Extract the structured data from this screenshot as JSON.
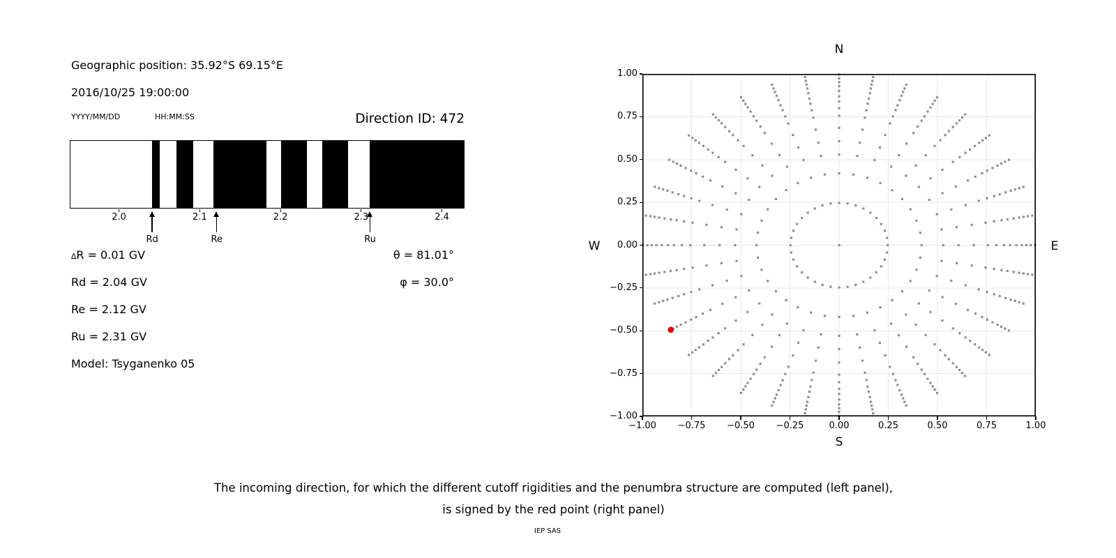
{
  "header": {
    "geo_position": "Geographic position: 35.92°S 69.15°E",
    "datetime": "2016/10/25 19:00:00",
    "date_format_label": "YYYY/MM/DD",
    "time_format_label": "HH:MM:SS"
  },
  "info": {
    "left_lines": [
      "∆R = 0.01 GV",
      "Rd = 2.04 GV",
      "Re = 2.12 GV",
      "Ru = 2.31 GV",
      "Model: Tsyganenko 05"
    ],
    "right_lines": [
      "θ = 81.01°",
      "φ = 30.0°"
    ]
  },
  "caption": {
    "line1": "The incoming direction, for which the different cutoff rigidities and the penumbra structure are computed (left panel),",
    "line2": "is signed by the red point (right panel)",
    "credit": "IEP SAS"
  },
  "colors": {
    "forbidden": "#000000",
    "allowed": "#ffffff",
    "dot_gray": "#8f8f8f",
    "dot_red": "#e00000",
    "grid": "#e8e8e8",
    "axis": "#000000",
    "text": "#000000"
  },
  "chart_data": [
    {
      "type": "bar",
      "name": "penumbra-structure",
      "title": "Direction ID: 472",
      "description": "Penumbra: black bands = forbidden rigidities, white = allowed trajectories",
      "xlabel_unit": "GV",
      "xlim": [
        1.939,
        2.428
      ],
      "xticks": [
        {
          "v": 2.0,
          "label": "2.0"
        },
        {
          "v": 2.1,
          "label": "2.1"
        },
        {
          "v": 2.2,
          "label": "2.2"
        },
        {
          "v": 2.3,
          "label": "2.3"
        },
        {
          "v": 2.4,
          "label": "2.4"
        }
      ],
      "forbidden_bands_GV": [
        [
          2.04,
          2.05
        ],
        [
          2.07,
          2.091
        ],
        [
          2.116,
          2.182
        ],
        [
          2.2,
          2.232
        ],
        [
          2.251,
          2.283
        ],
        [
          2.31,
          2.428
        ]
      ],
      "markers": [
        {
          "label": "Rd",
          "R": 2.041
        },
        {
          "label": "Re",
          "R": 2.121
        },
        {
          "label": "Ru",
          "R": 2.311
        }
      ]
    },
    {
      "type": "scatter",
      "name": "incoming-direction-grid",
      "description": "Grid of incoming directions; red point marks direction ID 472 (θ=81.01°, φ=30.0°)",
      "xlim": [
        -1,
        1
      ],
      "ylim": [
        -1,
        1
      ],
      "grid": true,
      "compass": {
        "top": "N",
        "bottom": "S",
        "left": "W",
        "right": "E"
      },
      "xticks": [
        {
          "v": -1.0,
          "label": "−1.00"
        },
        {
          "v": -0.75,
          "label": "−0.75"
        },
        {
          "v": -0.5,
          "label": "−0.50"
        },
        {
          "v": -0.25,
          "label": "−0.25"
        },
        {
          "v": 0.0,
          "label": "0.00"
        },
        {
          "v": 0.25,
          "label": "0.25"
        },
        {
          "v": 0.5,
          "label": "0.50"
        },
        {
          "v": 0.75,
          "label": "0.75"
        },
        {
          "v": 1.0,
          "label": "1.00"
        }
      ],
      "yticks": [
        {
          "v": 1.0,
          "label": "1.00"
        },
        {
          "v": 0.75,
          "label": "0.75"
        },
        {
          "v": 0.5,
          "label": "0.50"
        },
        {
          "v": 0.25,
          "label": "0.25"
        },
        {
          "v": 0.0,
          "label": "0.00"
        },
        {
          "v": -0.25,
          "label": "−0.25"
        },
        {
          "v": -0.5,
          "label": "−0.50"
        },
        {
          "v": -0.75,
          "label": "−0.75"
        },
        {
          "v": -1.0,
          "label": "−1.00"
        }
      ],
      "azimuths_deg": {
        "start": 0,
        "step": 10,
        "count": 36
      },
      "spoke_radii": [
        0.997,
        0.974,
        0.952,
        0.929,
        0.901,
        0.869,
        0.839,
        0.8,
        0.756,
        0.685,
        0.607,
        0.529,
        0.419,
        0.247
      ],
      "center_dot": true,
      "red_point": {
        "x": -0.8553,
        "y": -0.4939,
        "azimuth_deg": 210,
        "radius": 0.9877
      }
    }
  ]
}
